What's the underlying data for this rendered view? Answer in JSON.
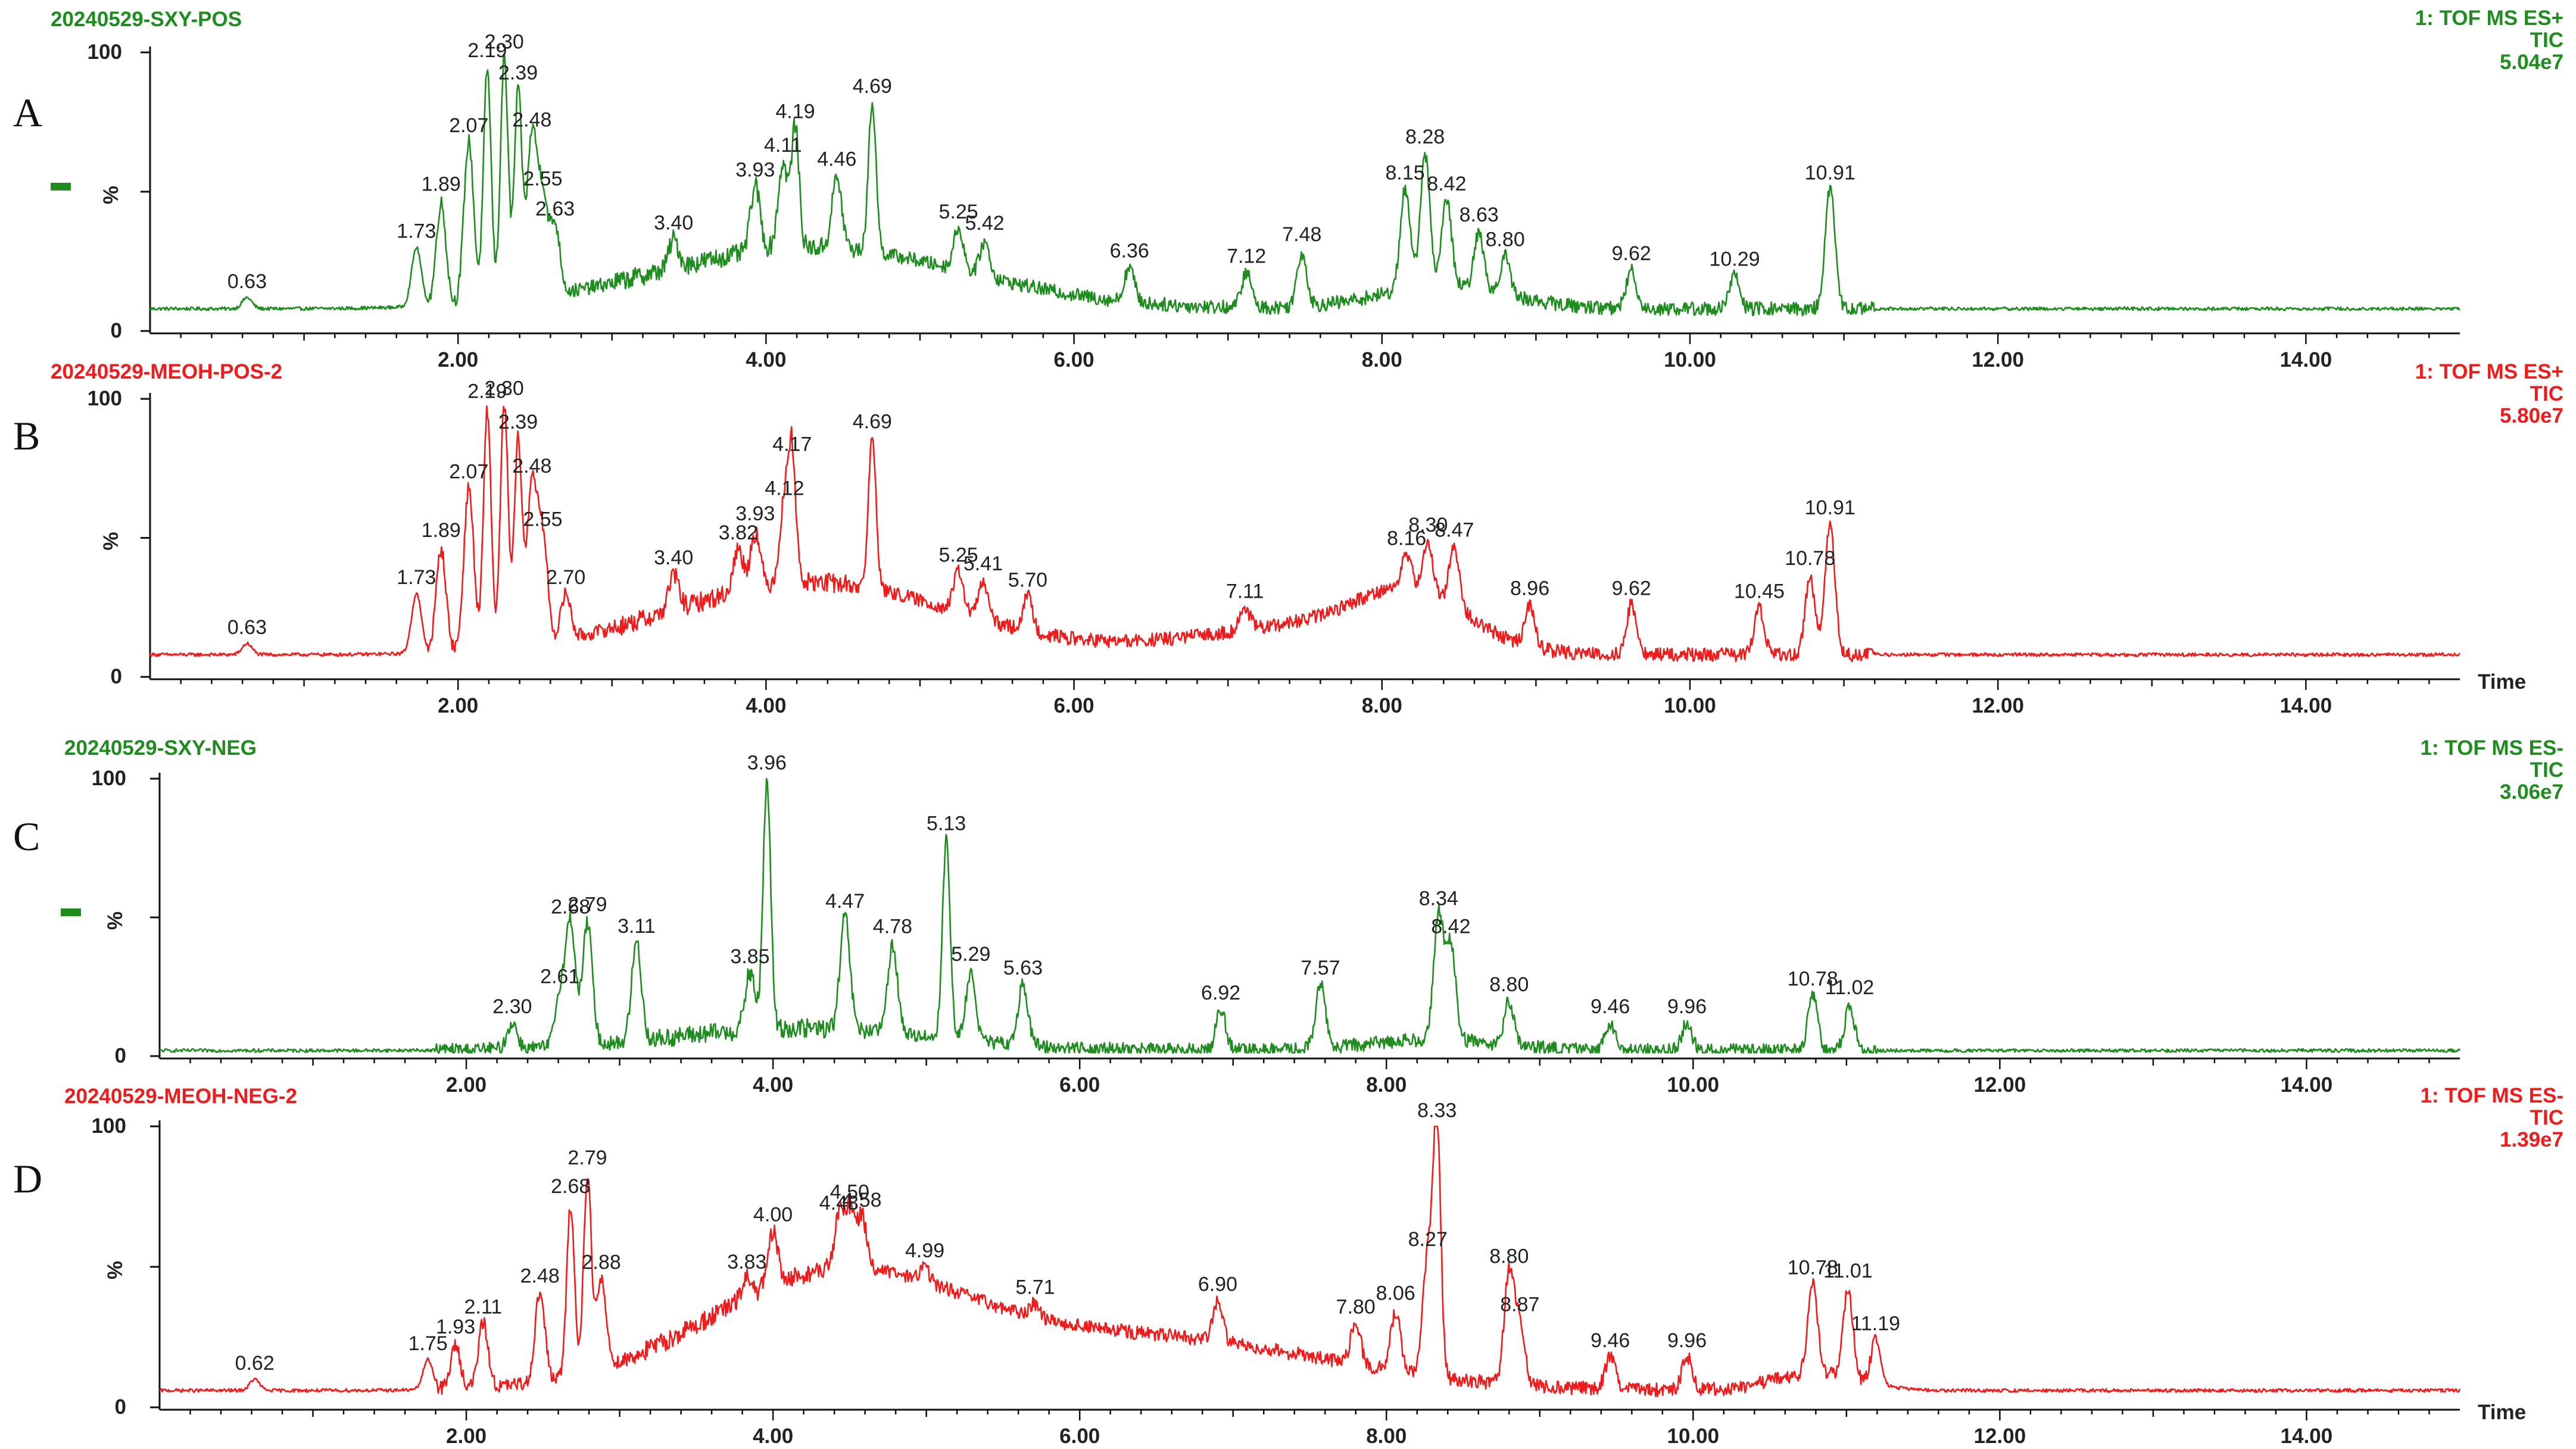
{
  "chart_data": [
    {
      "type": "line",
      "panel_letter": "A",
      "title": "20240529-SXY-POS",
      "mode": "1: TOF MS ES+",
      "signal": "TIC",
      "intensity": "5.04e7",
      "color": "#1f8c1f",
      "show_legend_marker": true,
      "show_time_label": false,
      "ylim": [
        0,
        100
      ],
      "xlim": [
        0,
        15
      ],
      "yticks": [
        "100",
        "%",
        "0"
      ],
      "xticks": [
        "2.00",
        "4.00",
        "6.00",
        "8.00",
        "10.00",
        "12.00",
        "14.00"
      ],
      "xlabel": "",
      "baseline": 8,
      "peaks": [
        {
          "x": 0.63,
          "y": 12,
          "label": "0.63"
        },
        {
          "x": 1.73,
          "y": 30,
          "label": "1.73"
        },
        {
          "x": 1.89,
          "y": 46,
          "label": "1.89"
        },
        {
          "x": 2.07,
          "y": 68,
          "label": "2.07"
        },
        {
          "x": 2.19,
          "y": 94,
          "label": "2.19"
        },
        {
          "x": 2.3,
          "y": 98,
          "label": "2.30"
        },
        {
          "x": 2.39,
          "y": 86,
          "label": "2.39"
        },
        {
          "x": 2.48,
          "y": 70,
          "label": "2.48"
        },
        {
          "x": 2.55,
          "y": 48,
          "label": "2.55"
        },
        {
          "x": 2.63,
          "y": 38,
          "label": "2.63"
        },
        {
          "x": 3.4,
          "y": 33,
          "label": "3.40"
        },
        {
          "x": 3.93,
          "y": 52,
          "label": "3.93"
        },
        {
          "x": 4.11,
          "y": 60,
          "label": "4.11"
        },
        {
          "x": 4.19,
          "y": 73,
          "label": "4.19"
        },
        {
          "x": 4.46,
          "y": 55,
          "label": "4.46"
        },
        {
          "x": 4.69,
          "y": 82,
          "label": "4.69"
        },
        {
          "x": 5.25,
          "y": 37,
          "label": "5.25"
        },
        {
          "x": 5.42,
          "y": 32,
          "label": "5.42"
        },
        {
          "x": 6.36,
          "y": 23,
          "label": "6.36"
        },
        {
          "x": 7.12,
          "y": 21,
          "label": "7.12"
        },
        {
          "x": 7.48,
          "y": 28,
          "label": "7.48"
        },
        {
          "x": 8.15,
          "y": 51,
          "label": "8.15"
        },
        {
          "x": 8.28,
          "y": 63,
          "label": "8.28"
        },
        {
          "x": 8.42,
          "y": 47,
          "label": "8.42"
        },
        {
          "x": 8.63,
          "y": 35,
          "label": "8.63"
        },
        {
          "x": 8.8,
          "y": 27,
          "label": "8.80"
        },
        {
          "x": 9.62,
          "y": 22,
          "label": "9.62"
        },
        {
          "x": 10.29,
          "y": 20,
          "label": "10.29"
        },
        {
          "x": 10.91,
          "y": 51,
          "label": "10.91"
        }
      ]
    },
    {
      "type": "line",
      "panel_letter": "B",
      "title": "20240529-MEOH-POS-2",
      "mode": "1: TOF MS ES+",
      "signal": "TIC",
      "intensity": "5.80e7",
      "color": "#ee1c1c",
      "show_legend_marker": false,
      "show_time_label": true,
      "ylim": [
        0,
        100
      ],
      "xlim": [
        0,
        15
      ],
      "yticks": [
        "100",
        "%",
        "0"
      ],
      "xticks": [
        "2.00",
        "4.00",
        "6.00",
        "8.00",
        "10.00",
        "12.00",
        "14.00"
      ],
      "xlabel": "Time",
      "baseline": 8,
      "peaks": [
        {
          "x": 0.63,
          "y": 12,
          "label": "0.63"
        },
        {
          "x": 1.73,
          "y": 30,
          "label": "1.73"
        },
        {
          "x": 1.89,
          "y": 46,
          "label": "1.89"
        },
        {
          "x": 2.07,
          "y": 68,
          "label": "2.07"
        },
        {
          "x": 2.19,
          "y": 96,
          "label": "2.19"
        },
        {
          "x": 2.3,
          "y": 98,
          "label": "2.30"
        },
        {
          "x": 2.39,
          "y": 85,
          "label": "2.39"
        },
        {
          "x": 2.48,
          "y": 70,
          "label": "2.48"
        },
        {
          "x": 2.55,
          "y": 50,
          "label": "2.55"
        },
        {
          "x": 2.7,
          "y": 30,
          "label": "2.70"
        },
        {
          "x": 3.4,
          "y": 37,
          "label": "3.40"
        },
        {
          "x": 3.82,
          "y": 46,
          "label": "3.82"
        },
        {
          "x": 3.93,
          "y": 52,
          "label": "3.93"
        },
        {
          "x": 4.12,
          "y": 62,
          "label": "4.12"
        },
        {
          "x": 4.17,
          "y": 77,
          "label": "4.17"
        },
        {
          "x": 4.69,
          "y": 86,
          "label": "4.69"
        },
        {
          "x": 5.25,
          "y": 38,
          "label": "5.25"
        },
        {
          "x": 5.41,
          "y": 34,
          "label": "5.41"
        },
        {
          "x": 5.7,
          "y": 29,
          "label": "5.70"
        },
        {
          "x": 7.11,
          "y": 25,
          "label": "7.11"
        },
        {
          "x": 8.16,
          "y": 44,
          "label": "8.16"
        },
        {
          "x": 8.3,
          "y": 48,
          "label": "8.30"
        },
        {
          "x": 8.47,
          "y": 47,
          "label": "8.47"
        },
        {
          "x": 8.96,
          "y": 26,
          "label": "8.96"
        },
        {
          "x": 9.62,
          "y": 26,
          "label": "9.62"
        },
        {
          "x": 10.45,
          "y": 25,
          "label": "10.45"
        },
        {
          "x": 10.78,
          "y": 36,
          "label": "10.78"
        },
        {
          "x": 10.91,
          "y": 55,
          "label": "10.91"
        }
      ]
    },
    {
      "type": "line",
      "panel_letter": "C",
      "title": "20240529-SXY-NEG",
      "mode": "1: TOF MS ES-",
      "signal": "TIC",
      "intensity": "3.06e7",
      "color": "#1f8c1f",
      "show_legend_marker": true,
      "show_time_label": false,
      "ylim": [
        0,
        100
      ],
      "xlim": [
        0,
        15
      ],
      "yticks": [
        "100",
        "%",
        "0"
      ],
      "xticks": [
        "2.00",
        "4.00",
        "6.00",
        "8.00",
        "10.00",
        "12.00",
        "14.00"
      ],
      "xlabel": "",
      "baseline": 2,
      "peaks": [
        {
          "x": 2.3,
          "y": 12,
          "label": "2.30"
        },
        {
          "x": 2.61,
          "y": 22,
          "label": "2.61"
        },
        {
          "x": 2.68,
          "y": 48,
          "label": "2.68"
        },
        {
          "x": 2.79,
          "y": 48,
          "label": "2.79"
        },
        {
          "x": 3.11,
          "y": 41,
          "label": "3.11"
        },
        {
          "x": 3.85,
          "y": 30,
          "label": "3.85"
        },
        {
          "x": 3.96,
          "y": 99,
          "label": "3.96"
        },
        {
          "x": 4.47,
          "y": 50,
          "label": "4.47"
        },
        {
          "x": 4.78,
          "y": 40,
          "label": "4.78"
        },
        {
          "x": 5.13,
          "y": 78,
          "label": "5.13"
        },
        {
          "x": 5.29,
          "y": 30,
          "label": "5.29"
        },
        {
          "x": 5.63,
          "y": 26,
          "label": "5.63"
        },
        {
          "x": 6.92,
          "y": 17,
          "label": "6.92"
        },
        {
          "x": 7.57,
          "y": 26,
          "label": "7.57"
        },
        {
          "x": 8.34,
          "y": 51,
          "label": "8.34"
        },
        {
          "x": 8.42,
          "y": 40,
          "label": "8.42"
        },
        {
          "x": 8.8,
          "y": 20,
          "label": "8.80"
        },
        {
          "x": 9.46,
          "y": 12,
          "label": "9.46"
        },
        {
          "x": 9.96,
          "y": 12,
          "label": "9.96"
        },
        {
          "x": 10.78,
          "y": 22,
          "label": "10.78"
        },
        {
          "x": 11.02,
          "y": 18,
          "label": "11.02"
        }
      ]
    },
    {
      "type": "line",
      "panel_letter": "D",
      "title": "20240529-MEOH-NEG-2",
      "mode": "1: TOF MS ES-",
      "signal": "TIC",
      "intensity": "1.39e7",
      "color": "#ee1c1c",
      "show_legend_marker": false,
      "show_time_label": true,
      "ylim": [
        0,
        100
      ],
      "xlim": [
        0,
        15
      ],
      "yticks": [
        "100",
        "%",
        "0"
      ],
      "xticks": [
        "2.00",
        "4.00",
        "6.00",
        "8.00",
        "10.00",
        "12.00",
        "14.00"
      ],
      "xlabel": "Time",
      "baseline": 6,
      "peaks": [
        {
          "x": 0.62,
          "y": 10,
          "label": "0.62"
        },
        {
          "x": 1.75,
          "y": 17,
          "label": "1.75"
        },
        {
          "x": 1.93,
          "y": 22,
          "label": "1.93"
        },
        {
          "x": 2.11,
          "y": 30,
          "label": "2.11"
        },
        {
          "x": 2.48,
          "y": 41,
          "label": "2.48"
        },
        {
          "x": 2.68,
          "y": 72,
          "label": "2.68"
        },
        {
          "x": 2.79,
          "y": 83,
          "label": "2.79"
        },
        {
          "x": 2.88,
          "y": 45,
          "label": "2.88"
        },
        {
          "x": 3.83,
          "y": 46,
          "label": "3.83"
        },
        {
          "x": 4.0,
          "y": 62,
          "label": "4.00"
        },
        {
          "x": 4.43,
          "y": 67,
          "label": "4.43"
        },
        {
          "x": 4.5,
          "y": 70,
          "label": "4.50"
        },
        {
          "x": 4.58,
          "y": 68,
          "label": "4.58"
        },
        {
          "x": 4.99,
          "y": 50,
          "label": "4.99"
        },
        {
          "x": 5.71,
          "y": 37,
          "label": "5.71"
        },
        {
          "x": 6.9,
          "y": 38,
          "label": "6.90"
        },
        {
          "x": 7.8,
          "y": 30,
          "label": "7.80"
        },
        {
          "x": 8.06,
          "y": 34,
          "label": "8.06"
        },
        {
          "x": 8.27,
          "y": 54,
          "label": "8.27"
        },
        {
          "x": 8.33,
          "y": 99,
          "label": "8.33"
        },
        {
          "x": 8.8,
          "y": 48,
          "label": "8.80"
        },
        {
          "x": 8.87,
          "y": 30,
          "label": "8.87"
        },
        {
          "x": 9.46,
          "y": 18,
          "label": "9.46"
        },
        {
          "x": 9.96,
          "y": 18,
          "label": "9.96"
        },
        {
          "x": 10.78,
          "y": 44,
          "label": "10.78"
        },
        {
          "x": 11.01,
          "y": 42,
          "label": "11.01"
        },
        {
          "x": 11.19,
          "y": 24,
          "label": "11.19"
        }
      ]
    }
  ]
}
